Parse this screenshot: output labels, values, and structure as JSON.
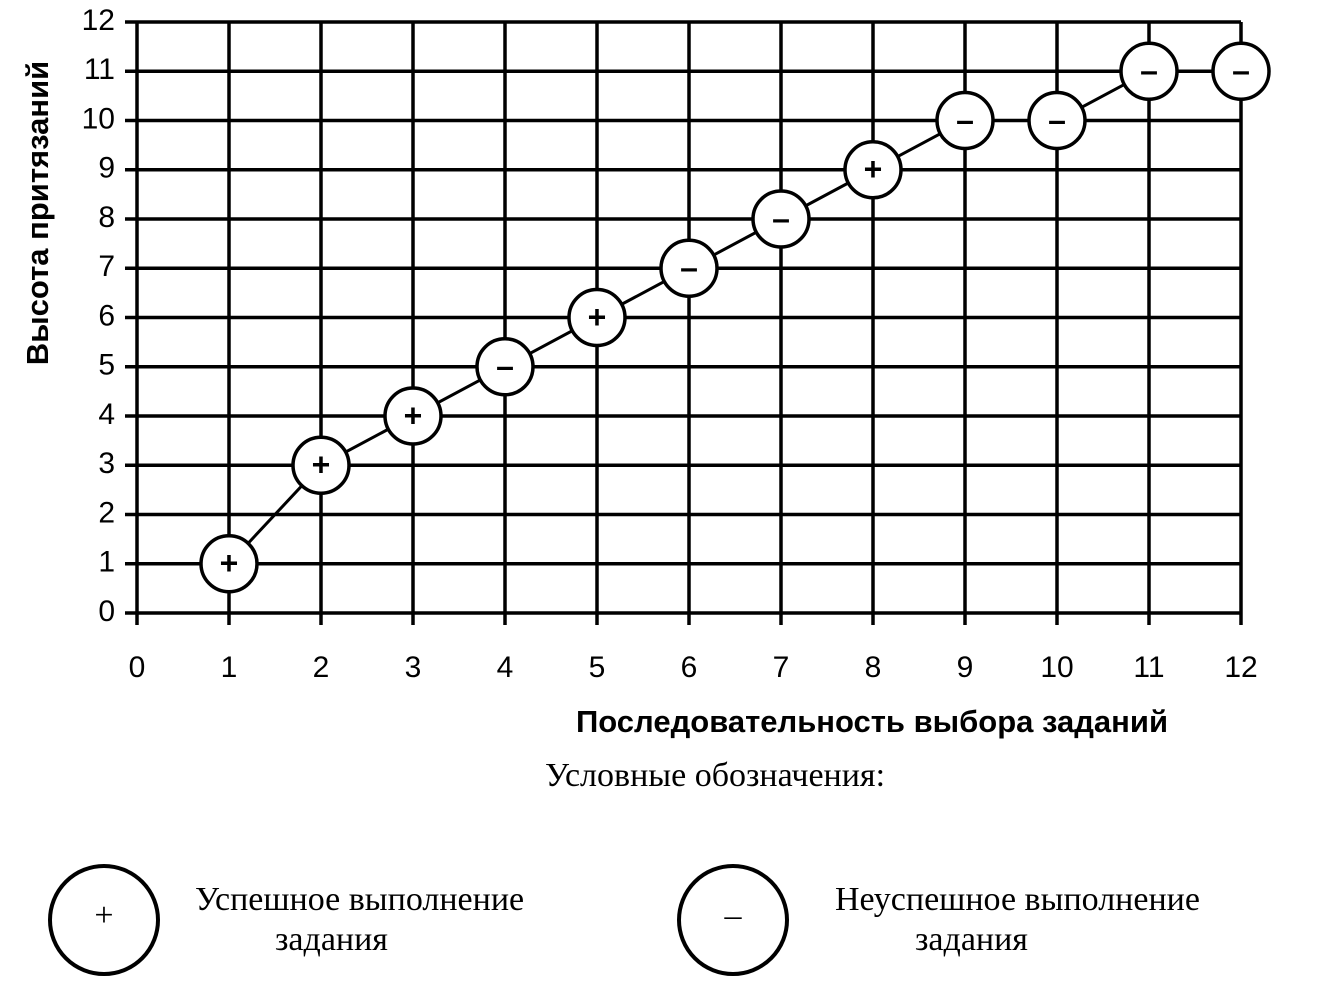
{
  "chart_data": {
    "type": "line",
    "y_label": "Высота притязаний",
    "x_label": "Последовательность выбора заданий",
    "x": [
      1,
      2,
      3,
      4,
      5,
      6,
      7,
      8,
      9,
      10,
      11,
      12
    ],
    "series": [
      {
        "color": "#000000",
        "values": [
          1,
          3,
          4,
          5,
          6,
          7,
          8,
          9,
          10,
          10,
          11,
          11
        ],
        "markers": [
          "+",
          "+",
          "+",
          "–",
          "+",
          "–",
          "–",
          "+",
          "–",
          "–",
          "–",
          "–"
        ]
      }
    ],
    "xlim": [
      0,
      12
    ],
    "xticks": [
      0,
      1,
      2,
      3,
      4,
      5,
      6,
      7,
      8,
      9,
      10,
      11,
      12
    ],
    "ylim": [
      0,
      12
    ],
    "yticks": [
      0,
      1,
      2,
      3,
      4,
      5,
      6,
      7,
      8,
      9,
      10,
      11,
      12
    ],
    "grid": true,
    "legend_title": "Условные обозначения:",
    "legend": [
      {
        "symbol": "+",
        "label": [
          "Успешное выполнение",
          "задания"
        ]
      },
      {
        "symbol": "–",
        "label": [
          "Неуспешное выполнение",
          "задания"
        ]
      }
    ]
  }
}
